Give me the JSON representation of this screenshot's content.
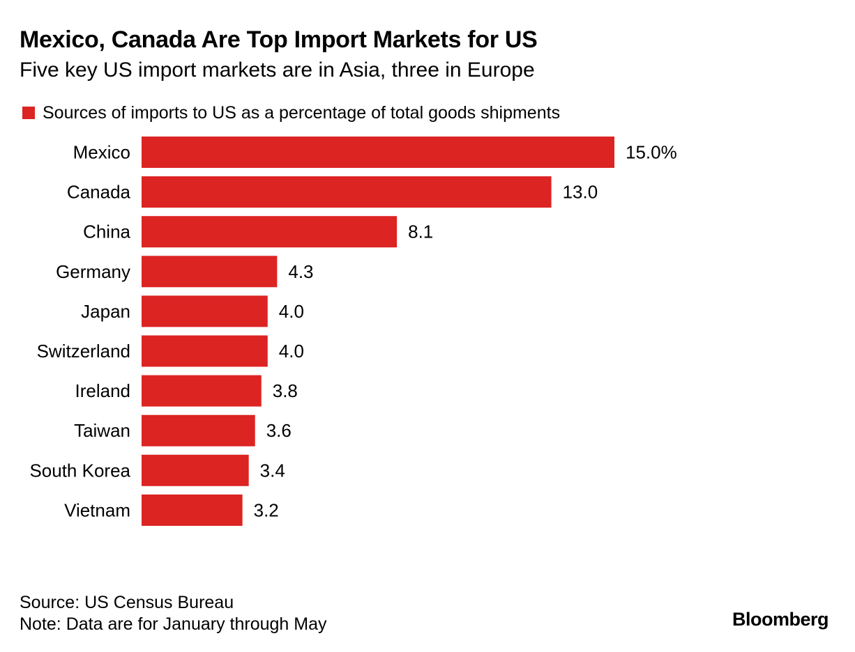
{
  "header": {
    "title": "Mexico, Canada Are Top Import Markets for US",
    "subtitle": "Five key US import markets are in Asia, three in Europe"
  },
  "colors": {
    "bar": "#dc2423",
    "text": "#000000",
    "background": "#ffffff"
  },
  "chart_data": {
    "type": "bar",
    "orientation": "horizontal",
    "title": "Mexico, Canada Are Top Import Markets for US",
    "subtitle": "Five key US import markets are in Asia, three in Europe",
    "legend": {
      "position": "top-left",
      "entries": [
        "Sources of imports to US as a percentage of total goods shipments"
      ]
    },
    "grid": false,
    "xlim": [
      0,
      15
    ],
    "categories": [
      "Mexico",
      "Canada",
      "China",
      "Germany",
      "Japan",
      "Switzerland",
      "Ireland",
      "Taiwan",
      "South Korea",
      "Vietnam"
    ],
    "series": [
      {
        "name": "Sources of imports to US as a percentage of total goods shipments",
        "values": [
          15.0,
          13.0,
          8.1,
          4.3,
          4.0,
          4.0,
          3.8,
          3.6,
          3.4,
          3.2
        ],
        "labels": [
          "15.0%",
          "13.0",
          "8.1",
          "4.3",
          "4.0",
          "4.0",
          "3.8",
          "3.6",
          "3.4",
          "3.2"
        ],
        "color": "#dc2423"
      }
    ]
  },
  "footer": {
    "source": "Source: US Census Bureau",
    "note": "Note: Data are for January through May",
    "brand": "Bloomberg"
  }
}
